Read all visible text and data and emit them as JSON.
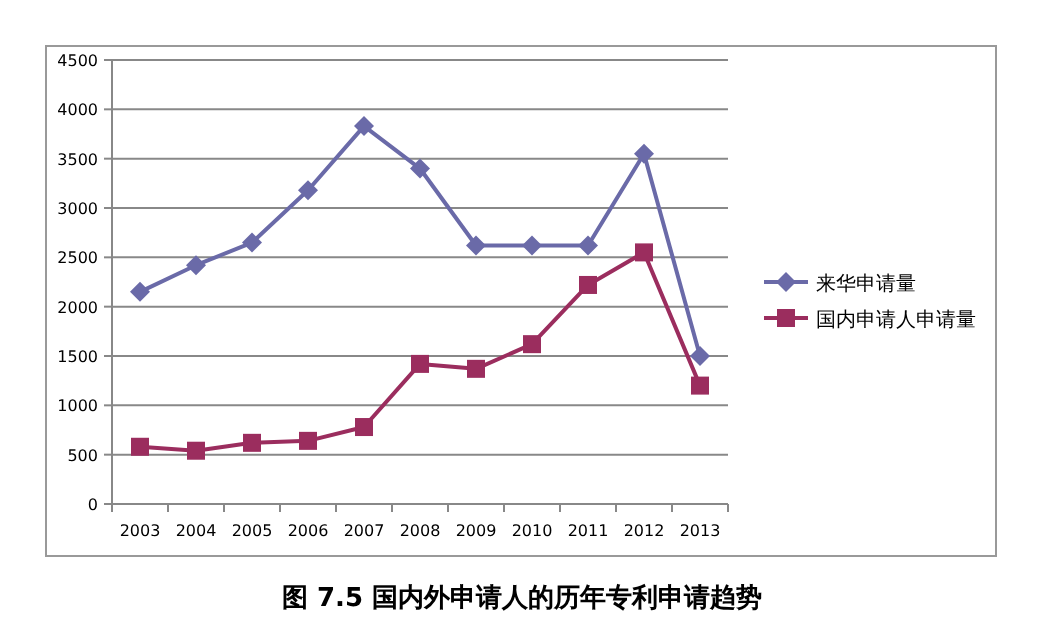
{
  "chart_data": {
    "type": "line",
    "title": "图 7.5 国内外申请人的历年专利申请趋势",
    "categories": [
      "2003",
      "2004",
      "2005",
      "2006",
      "2007",
      "2008",
      "2009",
      "2010",
      "2011",
      "2012",
      "2013"
    ],
    "series": [
      {
        "name": "来华申请量",
        "color": "#6a6aa8",
        "marker": "diamond",
        "values": [
          2150,
          2420,
          2650,
          3180,
          3830,
          3400,
          2620,
          2620,
          2620,
          3550,
          1500
        ]
      },
      {
        "name": "国内申请人申请量",
        "color": "#9b2d5e",
        "marker": "square",
        "values": [
          580,
          540,
          620,
          640,
          780,
          1420,
          1370,
          1620,
          2220,
          2550,
          1200
        ]
      }
    ],
    "ylim": [
      0,
      4500
    ],
    "yticks": [
      0,
      500,
      1000,
      1500,
      2000,
      2500,
      3000,
      3500,
      4000,
      4500
    ],
    "grid": "y",
    "legend": "right"
  }
}
